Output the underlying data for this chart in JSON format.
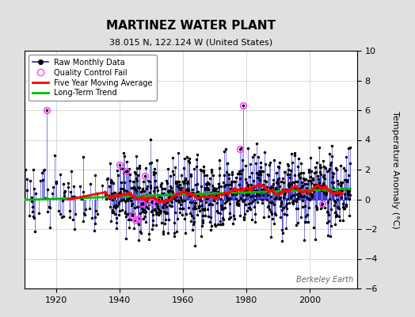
{
  "title": "MARTINEZ WATER PLANT",
  "subtitle": "38.015 N, 122.124 W (United States)",
  "watermark": "Berkeley Earth",
  "ylabel": "Temperature Anomaly (°C)",
  "xlim": [
    1910,
    2015
  ],
  "ylim": [
    -6,
    10
  ],
  "yticks": [
    -6,
    -4,
    -2,
    0,
    2,
    4,
    6,
    8,
    10
  ],
  "xticks": [
    1920,
    1940,
    1960,
    1980,
    2000
  ],
  "bg_color": "#e0e0e0",
  "plot_bg_color": "#ffffff",
  "raw_line_color": "#2222cc",
  "raw_dot_color": "#000000",
  "qc_fail_color": "#ff44ff",
  "moving_avg_color": "#ff0000",
  "trend_color": "#00bb00",
  "seed": 42,
  "start_year": 1910,
  "end_year": 2013,
  "qc_fail_points": [
    [
      1917,
      6.0
    ],
    [
      1940,
      2.3
    ],
    [
      1942,
      1.9
    ],
    [
      1944,
      -1.1
    ],
    [
      1945,
      -1.4
    ],
    [
      1946,
      -1.3
    ],
    [
      1947,
      -0.3
    ],
    [
      1948,
      1.6
    ],
    [
      1950,
      -0.2
    ],
    [
      1978,
      3.4
    ],
    [
      1979,
      6.3
    ],
    [
      2004,
      -0.3
    ]
  ],
  "data_start_dense_year": 1937
}
